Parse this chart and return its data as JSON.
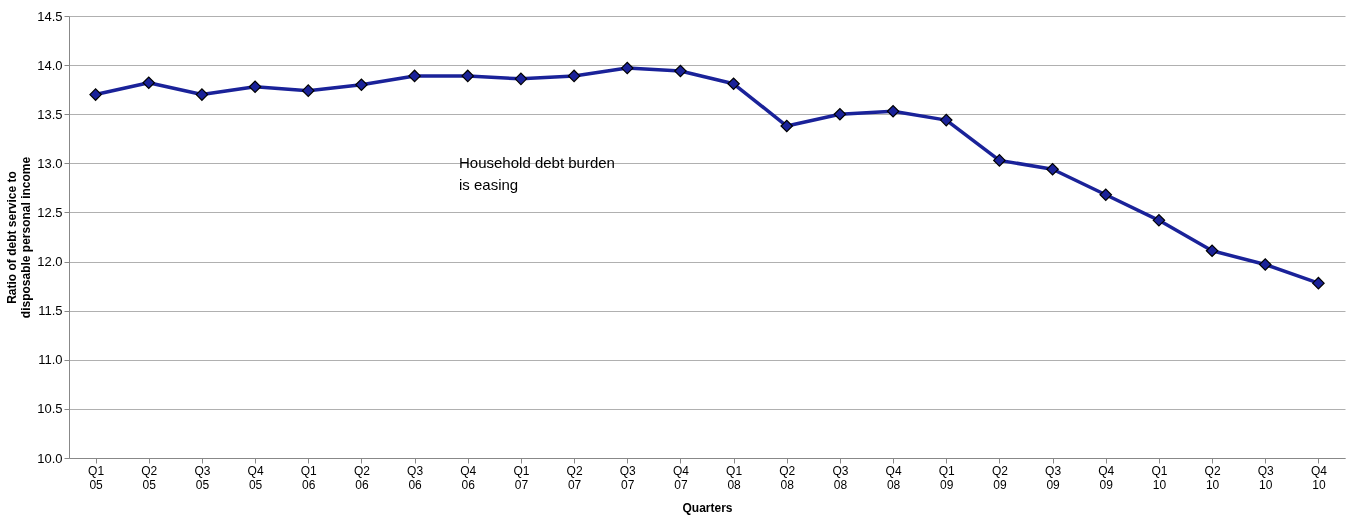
{
  "chart_data": {
    "type": "line",
    "xlabel": "Quarters",
    "ylabel": "Ratio of debt service to disposable personal income",
    "categories": [
      "Q1 05",
      "Q2 05",
      "Q3 05",
      "Q4 05",
      "Q1 06",
      "Q2 06",
      "Q3 06",
      "Q4 06",
      "Q1 07",
      "Q2 07",
      "Q3 07",
      "Q4 07",
      "Q1 08",
      "Q2 08",
      "Q3 08",
      "Q4 08",
      "Q1 09",
      "Q2 09",
      "Q3 09",
      "Q4 09",
      "Q1 10",
      "Q2 10",
      "Q3 10",
      "Q4 10"
    ],
    "series": [
      {
        "color": "#1a2299",
        "values": [
          13.7,
          13.82,
          13.7,
          13.78,
          13.74,
          13.8,
          13.89,
          13.89,
          13.86,
          13.89,
          13.97,
          13.94,
          13.81,
          13.38,
          13.5,
          13.53,
          13.44,
          13.03,
          12.94,
          12.68,
          12.42,
          12.11,
          11.97,
          11.78
        ]
      }
    ],
    "ylim": [
      10.0,
      14.5
    ],
    "yticks": [
      {
        "value": 10.0,
        "label": "10.0"
      },
      {
        "value": 10.5,
        "label": "10.5"
      },
      {
        "value": 11.0,
        "label": "11.0"
      },
      {
        "value": 11.5,
        "label": "11.5"
      },
      {
        "value": 12.0,
        "label": "12.0"
      },
      {
        "value": 12.5,
        "label": "12.5"
      },
      {
        "value": 13.0,
        "label": "13.0"
      },
      {
        "value": 13.5,
        "label": "13.5"
      },
      {
        "value": 14.0,
        "label": "14.0"
      },
      {
        "value": 14.5,
        "label": "14.5"
      }
    ],
    "grid": "y",
    "marker": "diamond",
    "line_style": "solid",
    "annotations": [
      "Household debt burden is easing"
    ]
  }
}
